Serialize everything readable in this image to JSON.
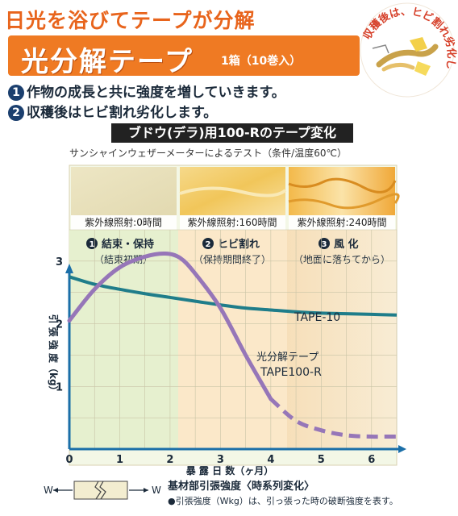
{
  "headline": "日光を浴びてテープが分解",
  "banner": {
    "title": "光分解テープ",
    "subtitle": "1箱（10巻入）"
  },
  "badge": {
    "text": "収穫後は、ヒビ割れ劣化します。"
  },
  "points": [
    {
      "num": "1",
      "text": "作物の成長と共に強度を増していきます。"
    },
    {
      "num": "2",
      "text": "収穫後はヒビ割れ劣化します。"
    }
  ],
  "chart_header": "ブドウ(デラ)用100-Rのテープ変化",
  "test_note": "サンシャインウェザーメーターによるテスト（条件/温度60℃）",
  "samples": [
    {
      "label": "紫外線照射:0時間"
    },
    {
      "label": "紫外線照射:160時間"
    },
    {
      "label": "紫外線照射:240時間"
    }
  ],
  "phases": [
    {
      "num": "1",
      "name": "結束・保持",
      "sub": "（結束初期）"
    },
    {
      "num": "2",
      "name": "ヒビ割れ",
      "sub": "（保持期間終了）"
    },
    {
      "num": "3",
      "name": "風 化",
      "sub": "（地面に落ちてから）"
    }
  ],
  "footer": {
    "w_left": "W",
    "w_right": "W",
    "title": "基材部引張強度〈時系列変化〉",
    "note": "●引張強度（Wkg）は、引っ張った時の破断強度を表す。"
  },
  "colors": {
    "orange": "#ef7a23",
    "phase1": "#e6f0cf",
    "phase2": "#fbe8c9",
    "phase3": "#f9cf9c",
    "tape10": "#1f7d8a",
    "tape100r": "#9676b8",
    "axis": "#1b6fa8"
  },
  "chart_data": {
    "type": "line",
    "title": "ブドウ(デラ)用100-Rのテープ変化",
    "xlabel": "暴 露 日 数（ヶ月）",
    "ylabel": "引 張 強 度（kg）",
    "xlim": [
      0,
      6.5
    ],
    "ylim": [
      0,
      3.5
    ],
    "xticks": [
      0,
      1,
      2,
      3,
      4,
      5,
      6
    ],
    "yticks": [
      1,
      2,
      3
    ],
    "grid": true,
    "series": [
      {
        "name": "TAPE-10",
        "style": "solid",
        "x": [
          0,
          0.5,
          1,
          1.5,
          2,
          2.5,
          3,
          3.5,
          4,
          4.5,
          5,
          5.5,
          6,
          6.5
        ],
        "y": [
          2.75,
          2.63,
          2.55,
          2.48,
          2.42,
          2.36,
          2.3,
          2.25,
          2.22,
          2.19,
          2.17,
          2.16,
          2.15,
          2.14
        ]
      },
      {
        "name": "光分解テープ TAPE100-R",
        "label_lines": [
          "光分解テープ",
          "TAPE100-R"
        ],
        "style": "solid-then-dashed",
        "dash_from_x": 4,
        "x": [
          0,
          0.5,
          1,
          1.5,
          1.9,
          2.2,
          2.5,
          3,
          3.5,
          4,
          4.5,
          5,
          5.5,
          6,
          6.5
        ],
        "y": [
          2.05,
          2.55,
          2.9,
          3.07,
          3.12,
          3.05,
          2.8,
          2.25,
          1.5,
          0.8,
          0.45,
          0.3,
          0.22,
          0.2,
          0.2
        ]
      }
    ]
  }
}
